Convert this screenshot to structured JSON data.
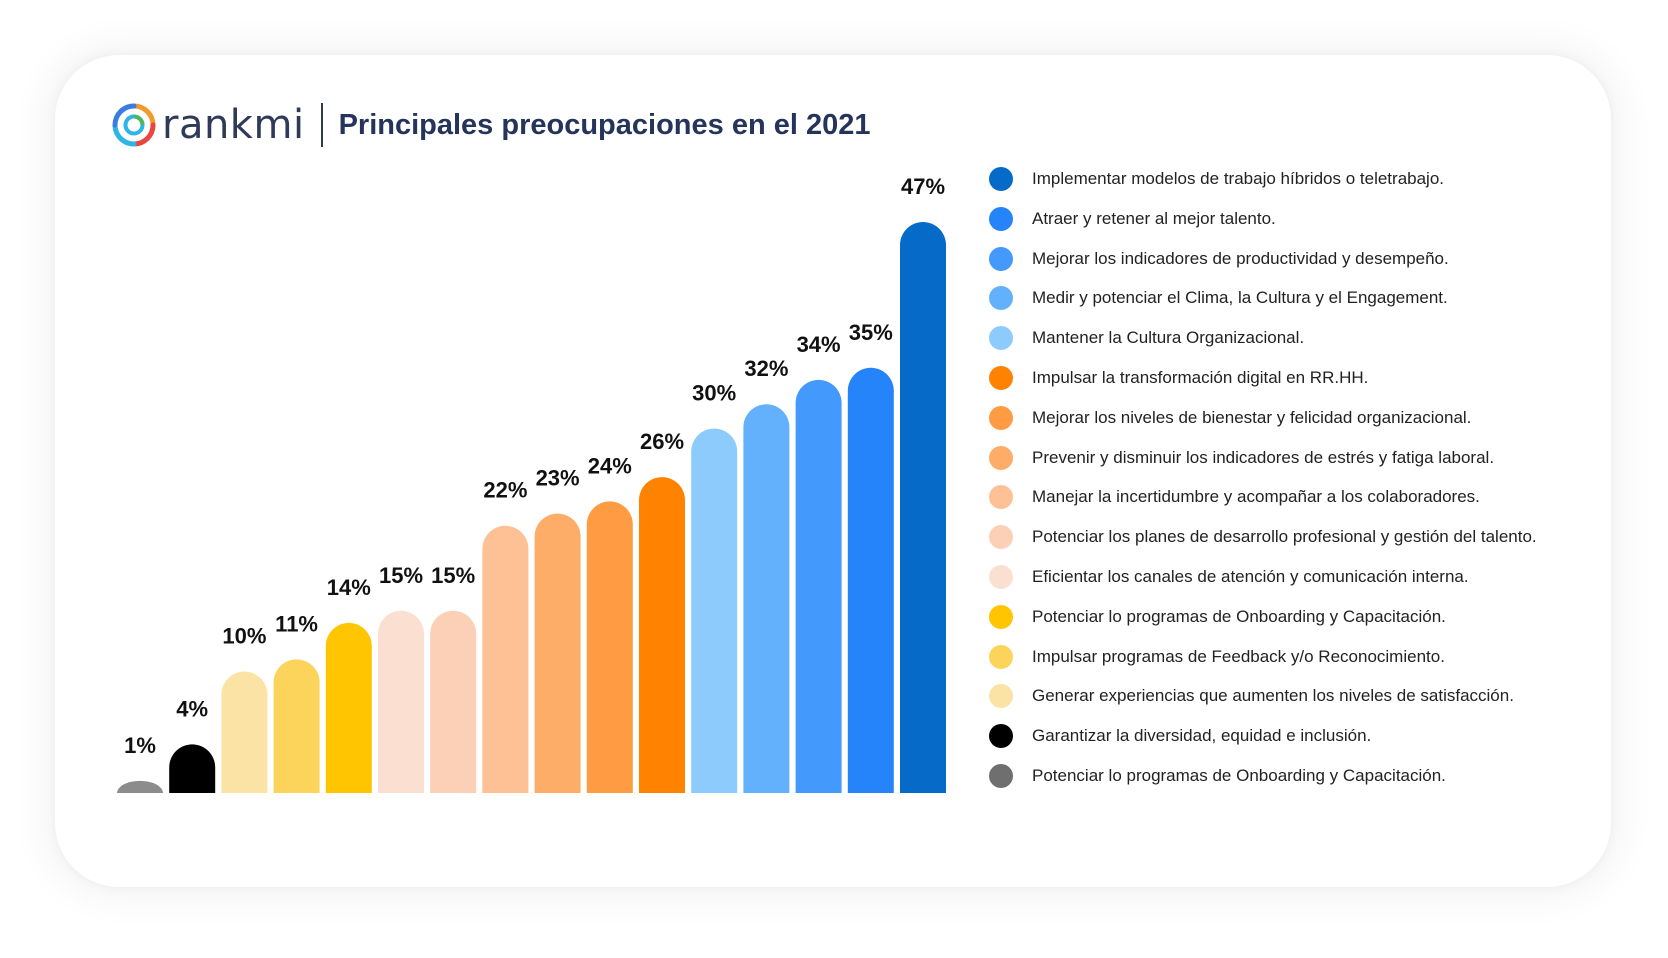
{
  "header": {
    "brand": "rankmi",
    "title": "Principales preocupaciones en el 2021"
  },
  "chart_data": {
    "type": "bar",
    "title": "Principales preocupaciones en el 2021",
    "value_suffix": "%",
    "ylim": [
      0,
      47
    ],
    "grid": false,
    "legend_placement": "right",
    "bars": [
      {
        "value": 1,
        "label": "1%",
        "color": "#8c8c8c"
      },
      {
        "value": 4,
        "label": "4%",
        "color": "#000000"
      },
      {
        "value": 10,
        "label": "10%",
        "color": "#fbe3a6"
      },
      {
        "value": 11,
        "label": "11%",
        "color": "#fdd45b"
      },
      {
        "value": 14,
        "label": "14%",
        "color": "#ffc500"
      },
      {
        "value": 15,
        "label": "15%",
        "color": "#fbe0d2"
      },
      {
        "value": 15,
        "label": "15%",
        "color": "#fcd0b7"
      },
      {
        "value": 22,
        "label": "22%",
        "color": "#fec195"
      },
      {
        "value": 23,
        "label": "23%",
        "color": "#fead68"
      },
      {
        "value": 24,
        "label": "24%",
        "color": "#ff9b42"
      },
      {
        "value": 26,
        "label": "26%",
        "color": "#ff8200"
      },
      {
        "value": 30,
        "label": "30%",
        "color": "#8ecbfd"
      },
      {
        "value": 32,
        "label": "32%",
        "color": "#63b0fd"
      },
      {
        "value": 34,
        "label": "34%",
        "color": "#4399fc"
      },
      {
        "value": 35,
        "label": "35%",
        "color": "#2684fb"
      },
      {
        "value": 47,
        "label": "47%",
        "color": "#066ac9"
      }
    ],
    "legend": [
      {
        "label": "Implementar modelos de trabajo híbridos o teletrabajo.",
        "color": "#066ac9"
      },
      {
        "label": "Atraer y retener al mejor talento.",
        "color": "#2684fb"
      },
      {
        "label": "Mejorar los indicadores de productividad y desempeño.",
        "color": "#4399fc"
      },
      {
        "label": "Medir y potenciar el Clima, la Cultura y el Engagement.",
        "color": "#63b0fd"
      },
      {
        "label": "Mantener la Cultura Organizacional.",
        "color": "#8ecbfd"
      },
      {
        "label": "Impulsar la transformación digital en RR.HH.",
        "color": "#ff8200"
      },
      {
        "label": "Mejorar los niveles de bienestar y felicidad organizacional.",
        "color": "#ff9b42"
      },
      {
        "label": "Prevenir y disminuir los indicadores de estrés y fatiga laboral.",
        "color": "#fead68"
      },
      {
        "label": "Manejar la incertidumbre y acompañar a los colaboradores.",
        "color": "#fec195"
      },
      {
        "label": "Potenciar los planes de desarrollo profesional y gestión del talento.",
        "color": "#fcd0b7"
      },
      {
        "label": "Eficientar los canales de atención y comunicación interna.",
        "color": "#fbe0d2"
      },
      {
        "label": "Potenciar lo programas de Onboarding y Capacitación.",
        "color": "#ffc500"
      },
      {
        "label": "Impulsar programas de Feedback y/o Reconocimiento.",
        "color": "#fdd45b"
      },
      {
        "label": "Generar experiencias que aumenten los niveles de satisfacción.",
        "color": "#fbe3a6"
      },
      {
        "label": "Garantizar la diversidad, equidad e inclusión.",
        "color": "#000000"
      },
      {
        "label": "Potenciar lo programas de Onboarding y Capacitación.",
        "color": "#6f6f6f"
      }
    ]
  }
}
